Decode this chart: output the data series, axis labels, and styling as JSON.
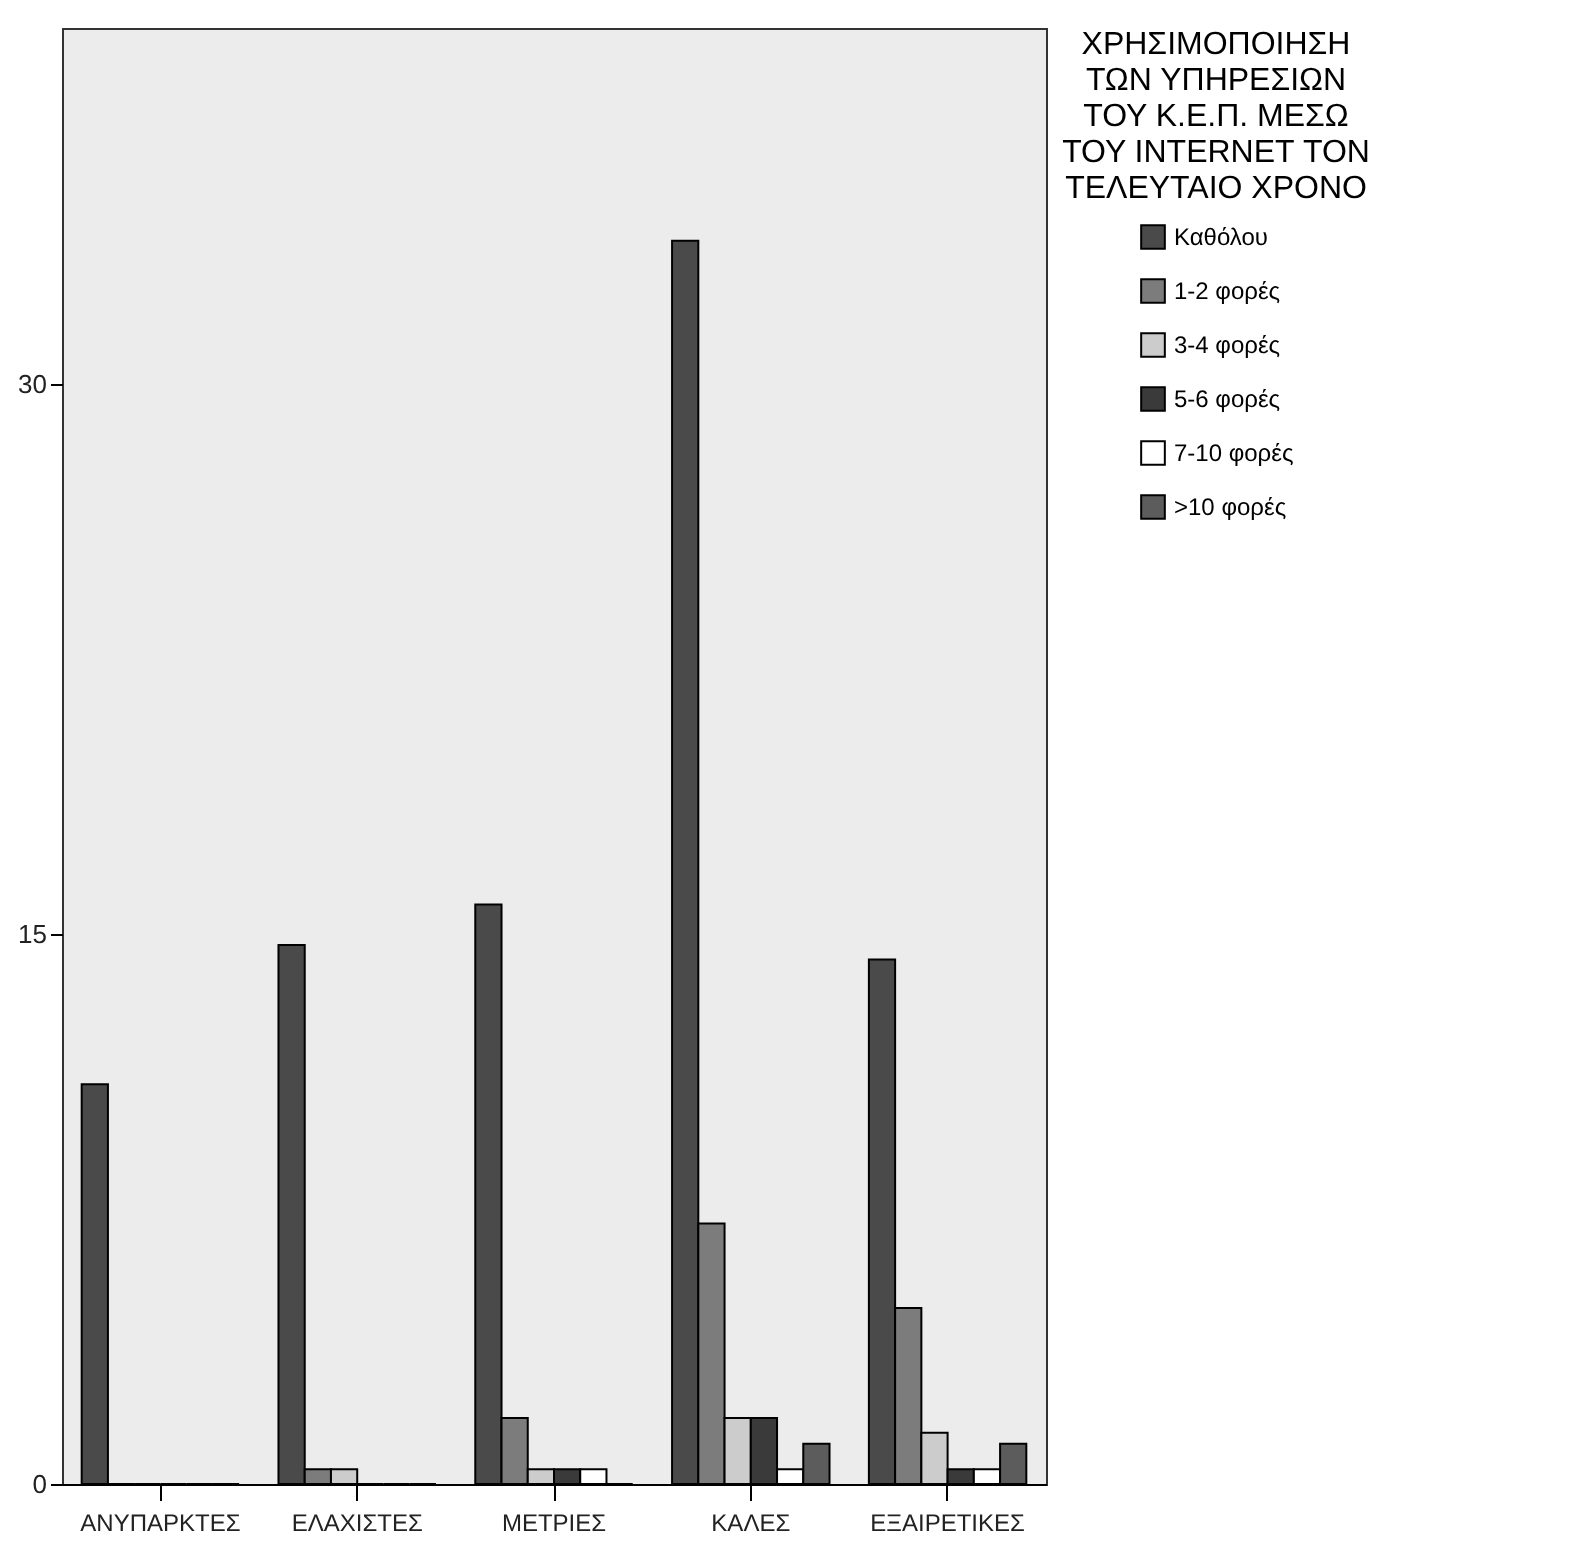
{
  "chart_data": {
    "type": "bar",
    "legend_title": "ΧΡΗΣΙΜΟΠΟΙΗΣΗ ΤΩΝ ΥΠΗΡΕΣΙΩΝ ΤΟΥ Κ.Ε.Π. ΜΕΣΩ ΤΟΥ INTERNET ΤΟΝ ΤΕΛΕΥΤΑΙΟ ΧΡΟΝΟ",
    "categories": [
      "ΑΝΥΠΑΡΚΤΕΣ",
      "ΕΛΑΧΙΣΤΕΣ",
      "ΜΕΤΡΙΕΣ",
      "ΚΑΛΕΣ",
      "ΕΞΑΙΡΕΤΙΚΕΣ"
    ],
    "series": [
      {
        "name": "Καθόλου",
        "color": "#4a4a4a",
        "values": [
          10.9,
          14.7,
          15.8,
          33.9,
          14.3
        ]
      },
      {
        "name": "1-2 φορές",
        "color": "#7c7c7c",
        "values": [
          0,
          0.4,
          1.8,
          7.1,
          4.8
        ]
      },
      {
        "name": "3-4 φορές",
        "color": "#cccccc",
        "values": [
          0,
          0.4,
          0.4,
          1.8,
          1.4
        ]
      },
      {
        "name": "5-6 φορές",
        "color": "#3a3a3a",
        "values": [
          0,
          0,
          0.4,
          1.8,
          0.4
        ]
      },
      {
        "name": "7-10 φορές",
        "color": "#ffffff",
        "values": [
          0,
          0,
          0.4,
          0.4,
          0.4
        ]
      },
      {
        "name": ">10 φορές",
        "color": "#5c5c5c",
        "values": [
          0,
          0,
          0,
          1.1,
          1.1
        ]
      }
    ],
    "ylim": [
      0,
      39.7
    ],
    "yticks": [
      0,
      15,
      30
    ],
    "grid": false,
    "legend": "top right"
  }
}
